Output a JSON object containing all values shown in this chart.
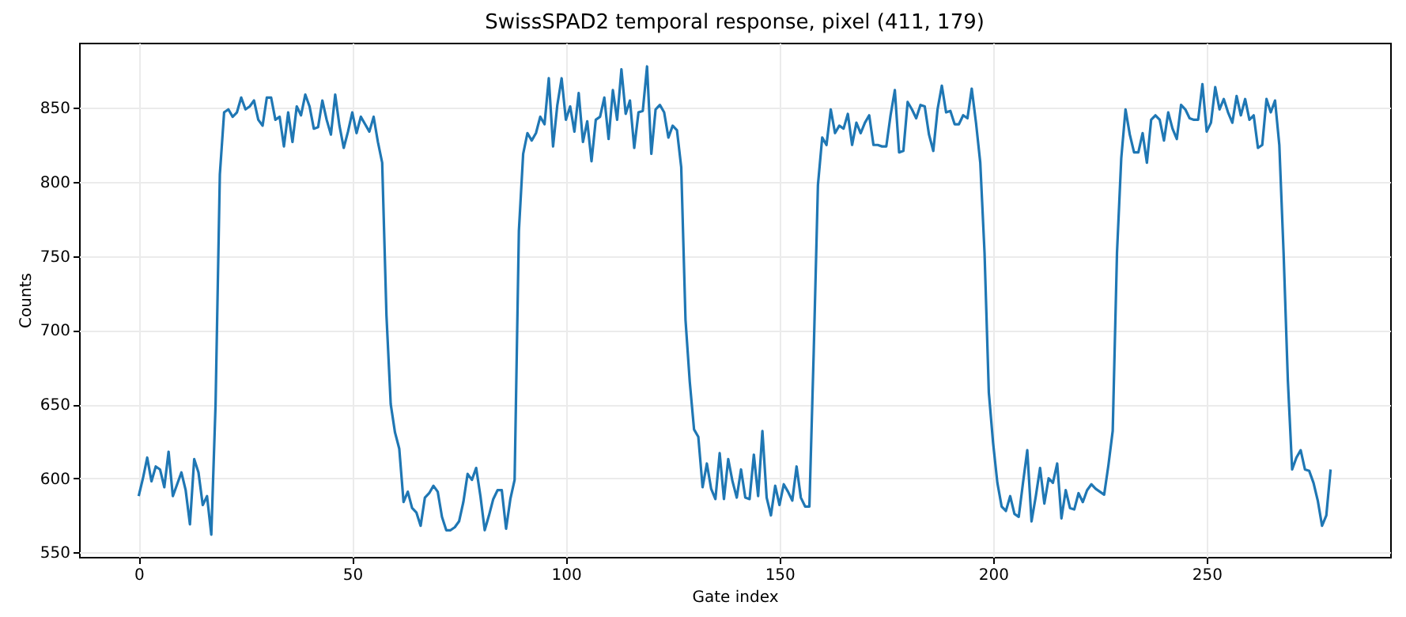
{
  "chart_data": {
    "type": "line",
    "title": "SwissSPAD2 temporal response, pixel (411, 179)",
    "xlabel": "Gate index",
    "ylabel": "Counts",
    "x": [
      0,
      1,
      2,
      3,
      4,
      5,
      6,
      7,
      8,
      9,
      10,
      11,
      12,
      13,
      14,
      15,
      16,
      17,
      18,
      19,
      20,
      21,
      22,
      23,
      24,
      25,
      26,
      27,
      28,
      29,
      30,
      31,
      32,
      33,
      34,
      35,
      36,
      37,
      38,
      39,
      40,
      41,
      42,
      43,
      44,
      45,
      46,
      47,
      48,
      49,
      50,
      51,
      52,
      53,
      54,
      55,
      56,
      57,
      58,
      59,
      60,
      61,
      62,
      63,
      64,
      65,
      66,
      67,
      68,
      69,
      70,
      71,
      72,
      73,
      74,
      75,
      76,
      77,
      78,
      79,
      80,
      81,
      82,
      83,
      84,
      85,
      86,
      87,
      88,
      89,
      90,
      91,
      92,
      93,
      94,
      95,
      96,
      97,
      98,
      99,
      100,
      101,
      102,
      103,
      104,
      105,
      106,
      107,
      108,
      109,
      110,
      111,
      112,
      113,
      114,
      115,
      116,
      117,
      118,
      119,
      120,
      121,
      122,
      123,
      124,
      125,
      126,
      127,
      128,
      129,
      130,
      131,
      132,
      133,
      134,
      135,
      136,
      137,
      138,
      139,
      140,
      141,
      142,
      143,
      144,
      145,
      146,
      147,
      148,
      149,
      150,
      151,
      152,
      153,
      154,
      155,
      156,
      157,
      158,
      159,
      160,
      161,
      162,
      163,
      164,
      165,
      166,
      167,
      168,
      169,
      170,
      171,
      172,
      173,
      174,
      175,
      176,
      177,
      178,
      179,
      180,
      181,
      182,
      183,
      184,
      185,
      186,
      187,
      188,
      189,
      190,
      191,
      192,
      193,
      194,
      195,
      196,
      197,
      198,
      199,
      200,
      201,
      202,
      203,
      204,
      205,
      206,
      207,
      208,
      209,
      210,
      211,
      212,
      213,
      214,
      215,
      216,
      217,
      218,
      219,
      220,
      221,
      222,
      223,
      224,
      225,
      226,
      227,
      228,
      229,
      230,
      231,
      232,
      233,
      234,
      235,
      236,
      237,
      238,
      239,
      240,
      241,
      242,
      243,
      244,
      245,
      246,
      247,
      248,
      249,
      250,
      251,
      252,
      253,
      254,
      255,
      256,
      257,
      258,
      259,
      260,
      261,
      262,
      263,
      264,
      265,
      266,
      267,
      268,
      269,
      270,
      271,
      272,
      273,
      274,
      275,
      276,
      277,
      278,
      279
    ],
    "series": [
      {
        "color": "#1f77b4",
        "values": [
          588,
          600,
          614,
          598,
          608,
          606,
          594,
          618,
          588,
          596,
          604,
          592,
          569,
          613,
          604,
          582,
          588,
          562,
          650,
          805,
          847,
          849,
          844,
          847,
          857,
          849,
          851,
          855,
          842,
          838,
          857,
          857,
          842,
          844,
          824,
          847,
          827,
          851,
          845,
          859,
          851,
          836,
          837,
          855,
          842,
          832,
          859,
          838,
          823,
          834,
          847,
          833,
          844,
          839,
          834,
          844,
          827,
          813,
          710,
          650,
          631,
          620,
          584,
          591,
          580,
          577,
          568,
          587,
          590,
          595,
          591,
          574,
          565,
          565,
          567,
          571,
          584,
          603,
          599,
          607,
          588,
          565,
          575,
          586,
          592,
          592,
          566,
          586,
          599,
          767,
          819,
          833,
          828,
          833,
          844,
          839,
          870,
          824,
          852,
          870,
          842,
          851,
          834,
          860,
          827,
          841,
          814,
          842,
          844,
          857,
          829,
          862,
          842,
          876,
          846,
          855,
          823,
          847,
          848,
          878,
          819,
          849,
          852,
          847,
          830,
          838,
          835,
          810,
          707,
          665,
          633,
          628,
          594,
          610,
          593,
          586,
          617,
          586,
          613,
          598,
          587,
          606,
          587,
          586,
          616,
          588,
          632,
          587,
          575,
          595,
          582,
          596,
          591,
          585,
          608,
          587,
          581,
          581,
          684,
          798,
          830,
          825,
          849,
          833,
          838,
          836,
          846,
          825,
          840,
          833,
          840,
          845,
          825,
          825,
          824,
          824,
          845,
          862,
          820,
          821,
          854,
          849,
          843,
          852,
          851,
          832,
          821,
          849,
          865,
          847,
          848,
          839,
          839,
          845,
          843,
          863,
          840,
          813,
          752,
          658,
          624,
          597,
          581,
          578,
          588,
          576,
          574,
          597,
          619,
          571,
          588,
          607,
          583,
          600,
          597,
          610,
          573,
          592,
          580,
          579,
          590,
          584,
          592,
          596,
          593,
          591,
          589,
          609,
          632,
          752,
          816,
          849,
          832,
          820,
          820,
          833,
          813,
          842,
          845,
          842,
          828,
          847,
          836,
          829,
          852,
          849,
          843,
          842,
          842,
          866,
          834,
          840,
          864,
          849,
          856,
          847,
          840,
          858,
          845,
          856,
          842,
          845,
          823,
          825,
          856,
          847,
          855,
          825,
          752,
          666,
          606,
          614,
          619,
          606,
          605,
          597,
          585,
          568,
          575,
          606
        ]
      }
    ],
    "xlim": [
      -13.95,
      292.95
    ],
    "ylim": [
      547,
      894
    ],
    "xticks": [
      0,
      50,
      100,
      150,
      200,
      250
    ],
    "yticks": [
      550,
      600,
      650,
      700,
      750,
      800,
      850
    ],
    "grid": true
  }
}
